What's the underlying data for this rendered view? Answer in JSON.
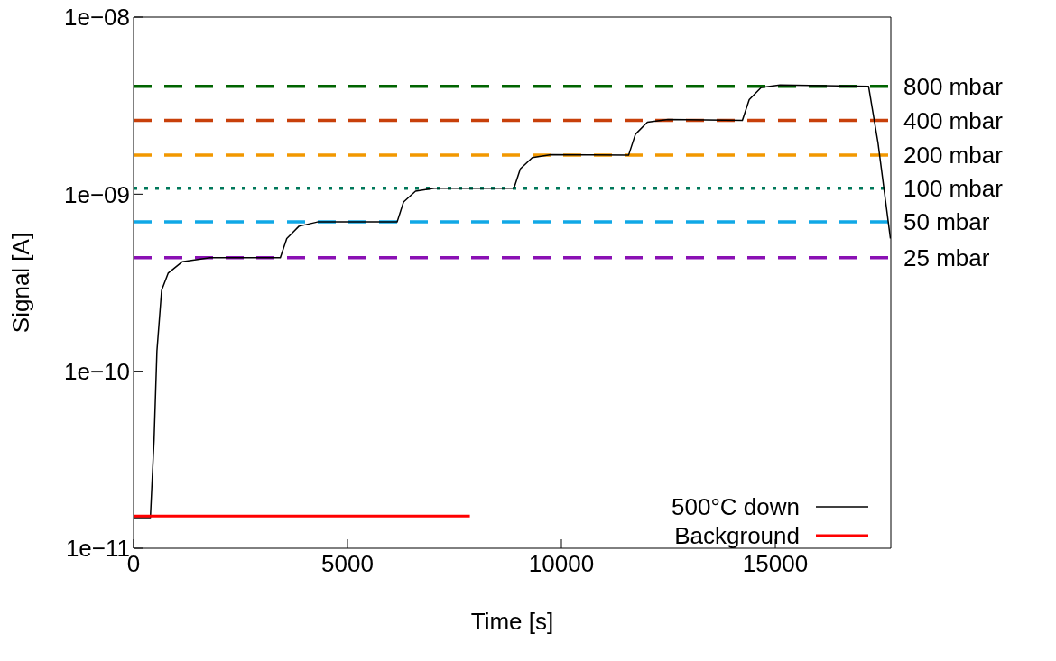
{
  "chart_data": {
    "type": "line",
    "xlabel": "Time [s]",
    "ylabel": "Signal [A]",
    "log": "y",
    "grid": false,
    "legend": "bottom right",
    "marker": "none",
    "xlim": [
      0,
      17700
    ],
    "xticks": [
      0,
      5000,
      10000,
      15000
    ],
    "ylim": [
      1e-11,
      1e-08
    ],
    "yticks": [
      {
        "value": 1e-11,
        "label": "1e−11"
      },
      {
        "value": 1e-10,
        "label": "1e−10"
      },
      {
        "value": 1e-09,
        "label": "1e−09"
      },
      {
        "value": 1e-08,
        "label": "1e−08"
      }
    ],
    "series": [
      {
        "name": "500°C down",
        "color": "#000000",
        "x": [
          0,
          393,
          480,
          546,
          655,
          808,
          1135,
          1790,
          3430,
          3580,
          3865,
          4300,
          6160,
          6310,
          6590,
          7030,
          8890,
          9040,
          9320,
          9760,
          11570,
          11730,
          12010,
          12490,
          14230,
          14390,
          14670,
          15110,
          17180,
          17400,
          17690
        ],
        "values": [
          1.49e-11,
          1.49e-11,
          4.15e-11,
          1.3e-10,
          2.86e-10,
          3.58e-10,
          4.15e-10,
          4.38e-10,
          4.38e-10,
          5.62e-10,
          6.59e-10,
          6.97e-10,
          6.97e-10,
          9.04e-10,
          1.04e-09,
          1.08e-09,
          1.08e-09,
          1.39e-09,
          1.61e-09,
          1.67e-09,
          1.66e-09,
          2.18e-09,
          2.55e-09,
          2.64e-09,
          2.61e-09,
          3.42e-09,
          4.01e-09,
          4.14e-09,
          4.06e-09,
          1.95e-09,
          5.62e-10
        ]
      },
      {
        "name": "Background",
        "color": "#ff0000",
        "x": [
          0,
          7860
        ],
        "values": [
          1.52e-11,
          1.52e-11
        ]
      }
    ],
    "ref_lines": [
      {
        "axis": "y",
        "value": 4.06e-09,
        "label": "800 mbar",
        "color": "#006400",
        "line_style": "dashed"
      },
      {
        "axis": "y",
        "value": 2.61e-09,
        "label": "400 mbar",
        "color": "#c8400a",
        "line_style": "dashed"
      },
      {
        "axis": "y",
        "value": 1.66e-09,
        "label": "200 mbar",
        "color": "#f29800",
        "line_style": "dashed"
      },
      {
        "axis": "y",
        "value": 1.08e-09,
        "label": "100 mbar",
        "color": "#00785a",
        "line_style": "dotted"
      },
      {
        "axis": "y",
        "value": 6.97e-10,
        "label": "50 mbar",
        "color": "#10a8e6",
        "line_style": "dashed"
      },
      {
        "axis": "y",
        "value": 4.38e-10,
        "label": "25 mbar",
        "color": "#8a10b4",
        "line_style": "dashed"
      }
    ]
  }
}
